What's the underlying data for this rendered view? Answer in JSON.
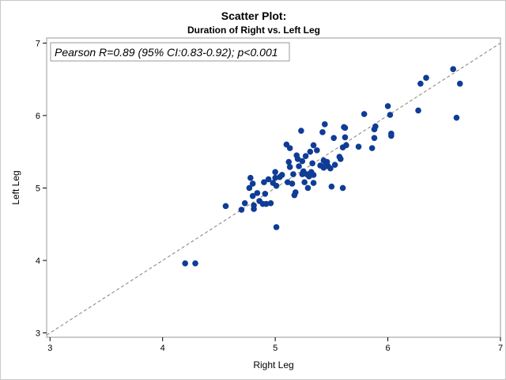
{
  "chart_data": {
    "type": "scatter",
    "title": "Scatter Plot:",
    "subtitle": "Duration of Right vs. Left Leg",
    "xlabel": "Right Leg",
    "ylabel": "Left Leg",
    "xlim": [
      2.97,
      7.0
    ],
    "ylim": [
      2.94,
      7.07
    ],
    "x_ticks": [
      "3",
      "4",
      "5",
      "6",
      "7"
    ],
    "y_ticks": [
      "3",
      "4",
      "5",
      "6",
      "7"
    ],
    "grid": false,
    "legend": "none",
    "annotation": "Pearson R=0.89 (95% CI:0.83-0.92); p<0.001",
    "reference_line": {
      "style": "dashed",
      "slope": 1,
      "intercept": 0,
      "color": "#808080"
    },
    "marker_color": "#0f3c96",
    "points": [
      {
        "x": 4.2,
        "y": 3.96
      },
      {
        "x": 4.29,
        "y": 3.96
      },
      {
        "x": 4.56,
        "y": 4.75
      },
      {
        "x": 4.7,
        "y": 4.7
      },
      {
        "x": 4.73,
        "y": 4.79
      },
      {
        "x": 4.77,
        "y": 5.0
      },
      {
        "x": 4.78,
        "y": 5.14
      },
      {
        "x": 4.8,
        "y": 5.06
      },
      {
        "x": 4.8,
        "y": 4.89
      },
      {
        "x": 4.81,
        "y": 4.76
      },
      {
        "x": 4.81,
        "y": 4.71
      },
      {
        "x": 4.84,
        "y": 4.93
      },
      {
        "x": 4.86,
        "y": 4.82
      },
      {
        "x": 4.89,
        "y": 4.78
      },
      {
        "x": 4.9,
        "y": 5.08
      },
      {
        "x": 4.91,
        "y": 4.92
      },
      {
        "x": 4.92,
        "y": 4.78
      },
      {
        "x": 4.94,
        "y": 5.12
      },
      {
        "x": 4.96,
        "y": 4.79
      },
      {
        "x": 4.98,
        "y": 5.07
      },
      {
        "x": 5.0,
        "y": 5.14
      },
      {
        "x": 5.0,
        "y": 5.22
      },
      {
        "x": 5.01,
        "y": 5.03
      },
      {
        "x": 5.01,
        "y": 4.46
      },
      {
        "x": 5.04,
        "y": 5.15
      },
      {
        "x": 5.06,
        "y": 5.18
      },
      {
        "x": 5.1,
        "y": 5.6
      },
      {
        "x": 5.11,
        "y": 5.08
      },
      {
        "x": 5.12,
        "y": 5.36
      },
      {
        "x": 5.13,
        "y": 5.29
      },
      {
        "x": 5.13,
        "y": 5.55
      },
      {
        "x": 5.15,
        "y": 5.06
      },
      {
        "x": 5.16,
        "y": 5.19
      },
      {
        "x": 5.17,
        "y": 4.9
      },
      {
        "x": 5.18,
        "y": 4.94
      },
      {
        "x": 5.19,
        "y": 5.45
      },
      {
        "x": 5.2,
        "y": 5.4
      },
      {
        "x": 5.21,
        "y": 5.3
      },
      {
        "x": 5.23,
        "y": 5.79
      },
      {
        "x": 5.24,
        "y": 5.37
      },
      {
        "x": 5.24,
        "y": 5.19
      },
      {
        "x": 5.25,
        "y": 5.23
      },
      {
        "x": 5.26,
        "y": 5.08
      },
      {
        "x": 5.27,
        "y": 5.44
      },
      {
        "x": 5.28,
        "y": 5.19
      },
      {
        "x": 5.29,
        "y": 5.0
      },
      {
        "x": 5.3,
        "y": 5.16
      },
      {
        "x": 5.31,
        "y": 5.5
      },
      {
        "x": 5.32,
        "y": 5.22
      },
      {
        "x": 5.33,
        "y": 5.34
      },
      {
        "x": 5.34,
        "y": 5.18
      },
      {
        "x": 5.34,
        "y": 5.59
      },
      {
        "x": 5.34,
        "y": 5.07
      },
      {
        "x": 5.37,
        "y": 5.52
      },
      {
        "x": 5.4,
        "y": 5.31
      },
      {
        "x": 5.42,
        "y": 5.77
      },
      {
        "x": 5.43,
        "y": 5.28
      },
      {
        "x": 5.43,
        "y": 5.38
      },
      {
        "x": 5.44,
        "y": 5.88
      },
      {
        "x": 5.45,
        "y": 5.33
      },
      {
        "x": 5.46,
        "y": 5.36
      },
      {
        "x": 5.47,
        "y": 5.3
      },
      {
        "x": 5.49,
        "y": 5.27
      },
      {
        "x": 5.5,
        "y": 5.02
      },
      {
        "x": 5.52,
        "y": 5.69
      },
      {
        "x": 5.53,
        "y": 5.32
      },
      {
        "x": 5.57,
        "y": 5.43
      },
      {
        "x": 5.58,
        "y": 5.4
      },
      {
        "x": 5.6,
        "y": 5.0
      },
      {
        "x": 5.6,
        "y": 5.56
      },
      {
        "x": 5.61,
        "y": 5.84
      },
      {
        "x": 5.62,
        "y": 5.7
      },
      {
        "x": 5.62,
        "y": 5.83
      },
      {
        "x": 5.63,
        "y": 5.59
      },
      {
        "x": 5.74,
        "y": 5.57
      },
      {
        "x": 5.79,
        "y": 6.02
      },
      {
        "x": 5.86,
        "y": 5.55
      },
      {
        "x": 5.88,
        "y": 5.69
      },
      {
        "x": 5.88,
        "y": 5.81
      },
      {
        "x": 5.89,
        "y": 5.85
      },
      {
        "x": 6.0,
        "y": 6.13
      },
      {
        "x": 6.02,
        "y": 6.01
      },
      {
        "x": 6.03,
        "y": 5.72
      },
      {
        "x": 6.03,
        "y": 5.75
      },
      {
        "x": 6.27,
        "y": 6.07
      },
      {
        "x": 6.29,
        "y": 6.44
      },
      {
        "x": 6.34,
        "y": 6.52
      },
      {
        "x": 6.58,
        "y": 6.64
      },
      {
        "x": 6.61,
        "y": 5.97
      },
      {
        "x": 6.64,
        "y": 6.44
      }
    ]
  }
}
